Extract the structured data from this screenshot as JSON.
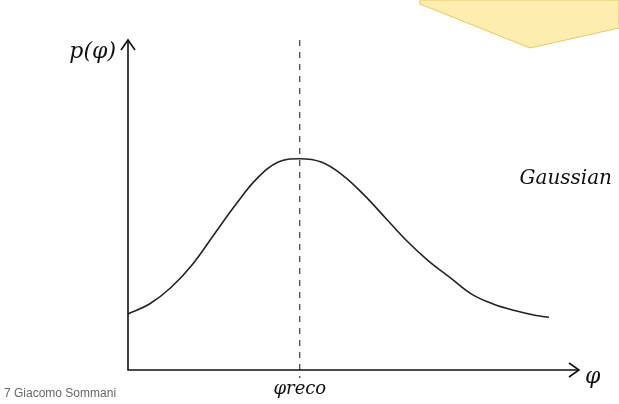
{
  "chart_data": {
    "type": "line",
    "x_label": "φ",
    "y_label": "p(φ)",
    "x": [
      0,
      0.5,
      1,
      1.5,
      2,
      2.5,
      3,
      3.5,
      4,
      4.5,
      5,
      5.5,
      6,
      6.5,
      7,
      7.5,
      8,
      8.5,
      9,
      9.5,
      9.8
    ],
    "series": [
      {
        "color": "#222222",
        "line_style": "solid",
        "values": [
          1.7,
          2.0,
          2.5,
          3.2,
          4.1,
          5.0,
          5.8,
          6.3,
          6.4,
          6.3,
          5.9,
          5.3,
          4.6,
          3.9,
          3.3,
          2.8,
          2.3,
          2.0,
          1.8,
          1.65,
          1.6
        ]
      }
    ],
    "xlim": [
      0,
      10.5
    ],
    "ylim": [
      0,
      10
    ],
    "tick_labels": false,
    "grid": false,
    "annotations": [
      {
        "text": "φreco",
        "x": 4,
        "line_style": "dashed"
      },
      {
        "text": "Gaussian"
      }
    ],
    "footer": "7 Giacomo Sommani"
  }
}
